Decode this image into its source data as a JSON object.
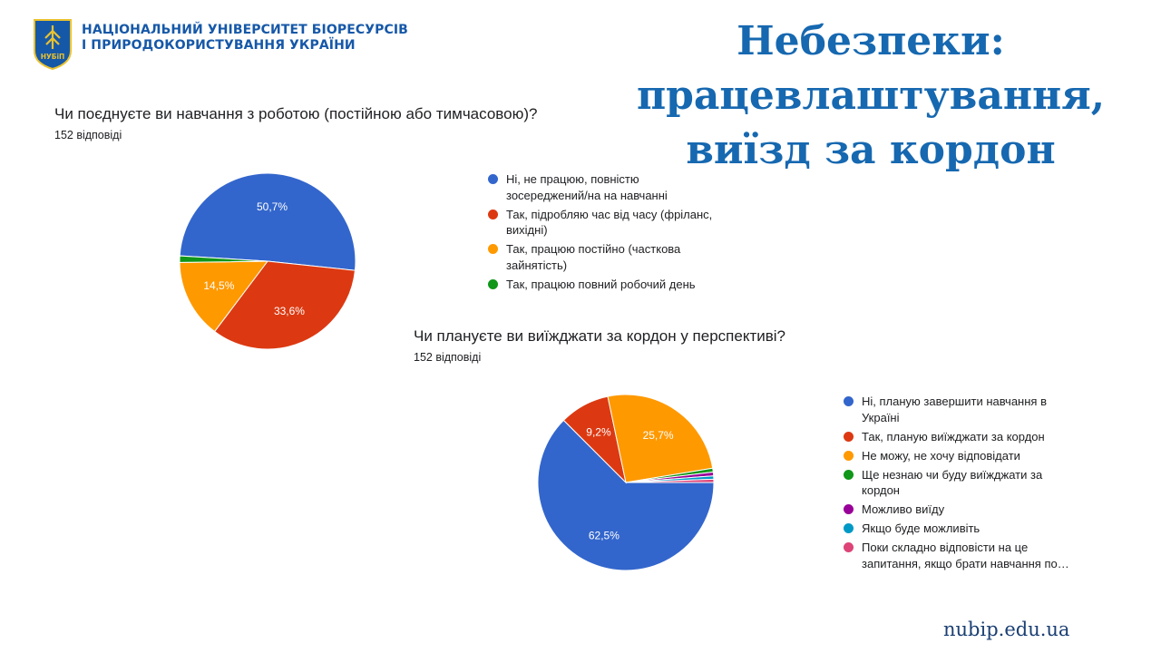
{
  "header": {
    "university_line1": "НАЦІОНАЛЬНИЙ УНІВЕРСИТЕТ БІОРЕСУРСІВ",
    "university_line2": "І ПРИРОДОКОРИСТУВАННЯ УКРАЇНИ",
    "logo_text": "НУБіП"
  },
  "slide_title": {
    "line1": "Небезпеки:",
    "line2": "працевлаштування,",
    "line3": "виїзд за кордон"
  },
  "footer": {
    "url": "nubip.edu.ua"
  },
  "chart_data": [
    {
      "type": "pie",
      "title": "Чи поєднуєте ви навчання з роботою (постійною або тимчасовою)?",
      "subtitle": "152 відповіді",
      "legend_position": "right",
      "series": [
        {
          "name": "Ні, не працюю, повністю зосереджений/на на навчанні",
          "value": 50.7,
          "label": "50,7%",
          "color": "#3366cc"
        },
        {
          "name": "Так, підробляю час від часу (фріланс, вихідні)",
          "value": 33.6,
          "label": "33,6%",
          "color": "#dc3912"
        },
        {
          "name": "Так, працюю постійно (часткова зайнятість)",
          "value": 14.5,
          "label": "14,5%",
          "color": "#ff9900"
        },
        {
          "name": "Так, працюю повний робочий день",
          "value": 1.2,
          "label": "",
          "color": "#109618"
        }
      ]
    },
    {
      "type": "pie",
      "title": "Чи плануєте ви виїжджати за кордон у перспективі?",
      "subtitle": "152 відповіді",
      "legend_position": "right",
      "series": [
        {
          "name": "Ні, планую завершити навчання в Україні",
          "value": 62.5,
          "label": "62,5%",
          "color": "#3366cc"
        },
        {
          "name": "Так, планую виїжджати за кордон",
          "value": 9.2,
          "label": "9,2%",
          "color": "#dc3912"
        },
        {
          "name": "Не можу, не хочу відповідати",
          "value": 25.7,
          "label": "25,7%",
          "color": "#ff9900"
        },
        {
          "name": "Ще незнаю чи буду виїжджати за кордон",
          "value": 0.7,
          "label": "",
          "color": "#109618"
        },
        {
          "name": "Можливо виїду",
          "value": 0.7,
          "label": "",
          "color": "#990099"
        },
        {
          "name": "Якщо буде можливіть",
          "value": 0.6,
          "label": "",
          "color": "#0099c6"
        },
        {
          "name": "Поки складно відповісти на це запитання, якщо брати навчання по…",
          "value": 0.6,
          "label": "",
          "color": "#dd4477"
        }
      ]
    }
  ]
}
